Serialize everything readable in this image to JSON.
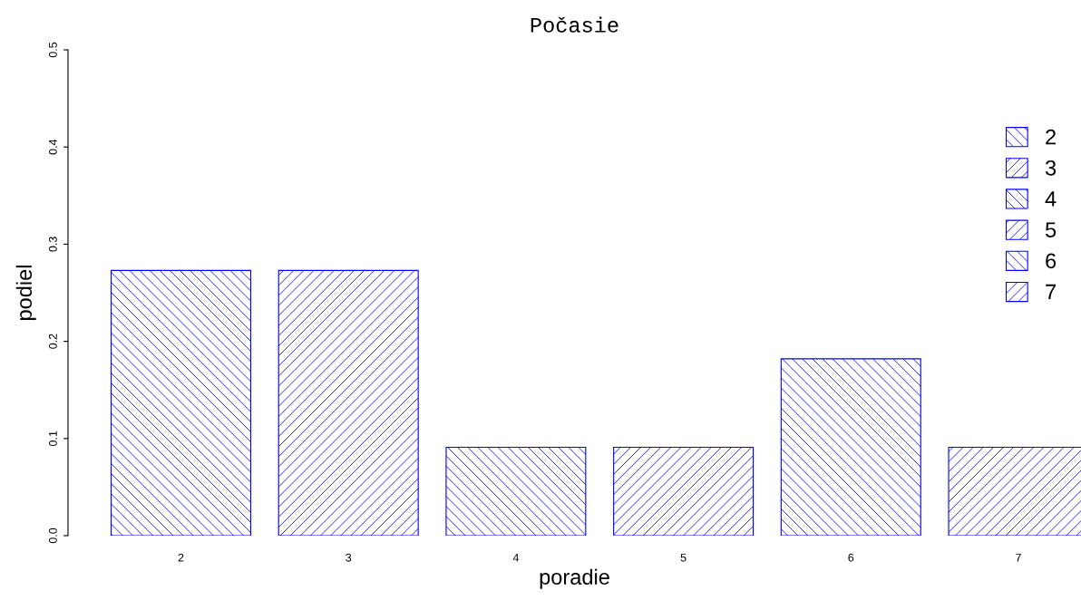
{
  "chart_data": {
    "type": "bar",
    "title": "Počasie",
    "xlabel": "poradie",
    "ylabel": "podiel",
    "categories": [
      "2",
      "3",
      "4",
      "5",
      "6",
      "7"
    ],
    "series": [
      {
        "name": "2",
        "color": "#0000ff",
        "values": [
          0.273,
          null,
          null,
          null,
          null,
          null
        ]
      },
      {
        "name": "3",
        "color": "#0000ff",
        "values": [
          null,
          0.273,
          null,
          null,
          null,
          null
        ]
      },
      {
        "name": "4",
        "color": "#0000ff",
        "values": [
          null,
          null,
          0.091,
          null,
          null,
          null
        ]
      },
      {
        "name": "5",
        "color": "#0000ff",
        "values": [
          null,
          null,
          null,
          0.091,
          null,
          null
        ]
      },
      {
        "name": "6",
        "color": "#0000ff",
        "values": [
          null,
          null,
          null,
          null,
          0.182,
          null
        ]
      },
      {
        "name": "7",
        "color": "#0000ff",
        "values": [
          null,
          null,
          null,
          null,
          null,
          0.091
        ]
      }
    ],
    "ylim": [
      0,
      0.5
    ],
    "yticks": [
      {
        "value": 0,
        "label": "0.0"
      },
      0.1,
      0.2,
      0.3,
      0.4,
      0.5
    ],
    "legend": "top right",
    "grid": false
  }
}
